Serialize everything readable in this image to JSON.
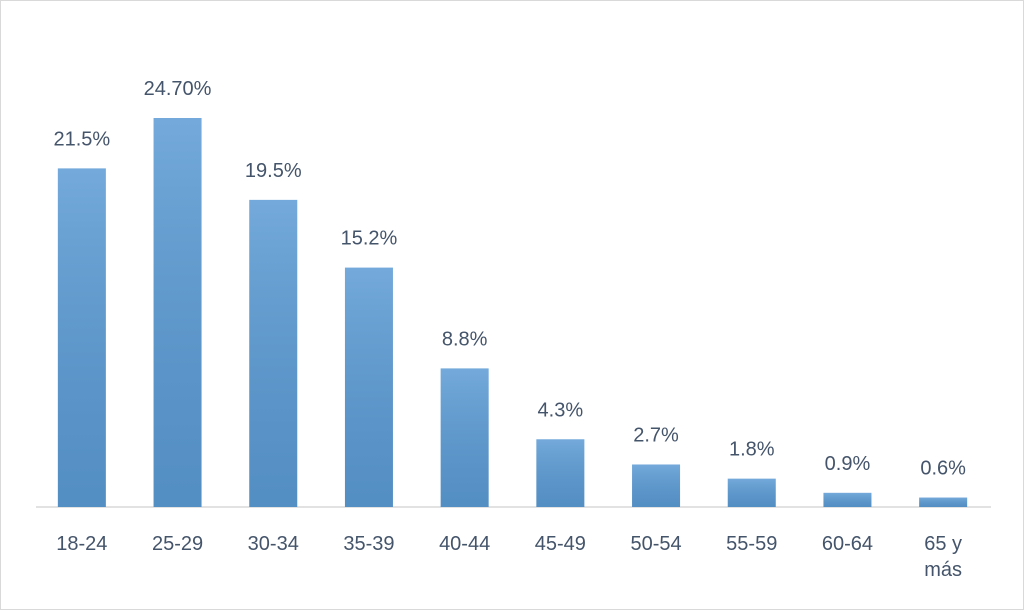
{
  "chart_data": {
    "type": "bar",
    "categories": [
      "18-24",
      "25-29",
      "30-34",
      "35-39",
      "40-44",
      "45-49",
      "50-54",
      "55-59",
      "60-64",
      "65 y más"
    ],
    "values": [
      21.5,
      24.7,
      19.5,
      15.2,
      8.8,
      4.3,
      2.7,
      1.8,
      0.9,
      0.6
    ],
    "value_labels": [
      "21.5%",
      "24.70%",
      "19.5%",
      "15.2%",
      "8.8%",
      "4.3%",
      "2.7%",
      "1.8%",
      "0.9%",
      "0.6%"
    ],
    "color": "#5b9bd5"
  }
}
